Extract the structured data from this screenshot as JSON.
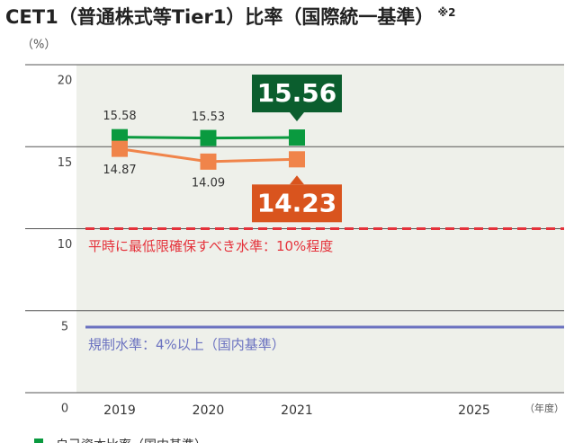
{
  "chart_data": {
    "type": "line",
    "title": "CET1（普通株式等Tier1）比率（国際統一基準）",
    "title_note": "※2",
    "y_unit": "（%）",
    "x_unit": "（年度）",
    "categories": [
      "2019",
      "2020",
      "2021",
      null,
      "2025"
    ],
    "series": [
      {
        "name": "自己資本比率（国内基準）",
        "color": "#0a9a3f",
        "callout_color": "#0b5e2e",
        "values": [
          15.58,
          15.53,
          15.56,
          null,
          null
        ]
      },
      {
        "color": "#f0844a",
        "callout_color": "#d9541e",
        "values": [
          14.87,
          14.09,
          14.23,
          null,
          null
        ]
      }
    ],
    "reference_lines": [
      {
        "value": 10,
        "label": "平時に最低限確保すべき水準：10%程度",
        "color": "#e5323b",
        "style": "dashed"
      },
      {
        "value": 4,
        "label": "規制水準：4%以上（国内基準）",
        "color": "#6b72c0",
        "style": "solid"
      }
    ],
    "ylim": [
      0,
      20
    ],
    "yticks": [
      0,
      5,
      10,
      15,
      20
    ],
    "grid": true
  }
}
